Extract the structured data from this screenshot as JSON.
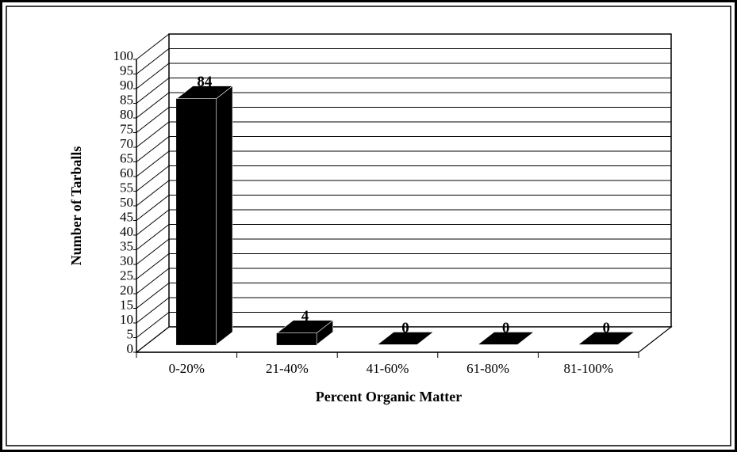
{
  "chart_data": {
    "type": "bar3d",
    "categories": [
      "0-20%",
      "21-40%",
      "41-60%",
      "61-80%",
      "81-100%"
    ],
    "values": [
      84,
      4,
      0,
      0,
      0
    ],
    "color": "#000000",
    "xlabel": "Percent Organic Matter",
    "ylabel": "Number of Tarballs",
    "ylim": [
      0,
      100
    ],
    "yticks": [
      0,
      5,
      10,
      15,
      20,
      25,
      30,
      35,
      40,
      45,
      50,
      55,
      60,
      65,
      70,
      75,
      80,
      85,
      90,
      95,
      100
    ],
    "grid": true
  }
}
